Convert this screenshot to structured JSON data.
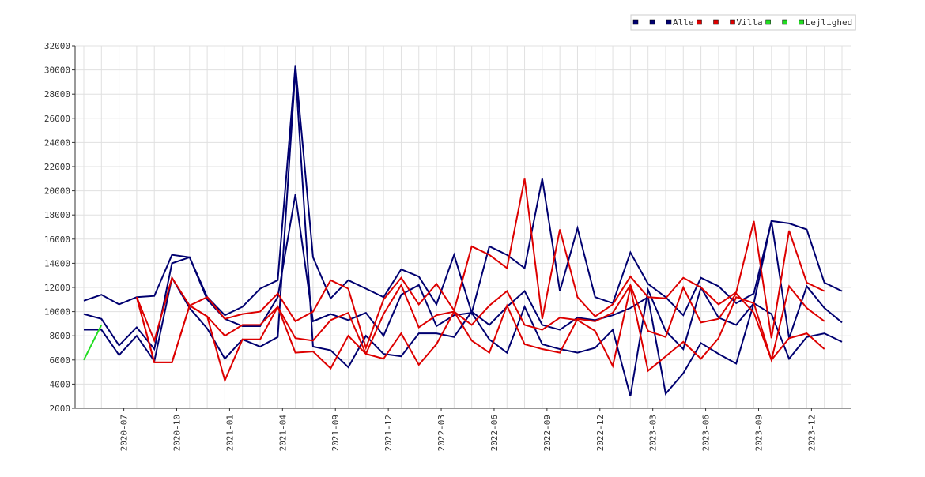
{
  "chart_data": {
    "type": "line",
    "categories": [
      null,
      null,
      "2020-07",
      null,
      null,
      "2020-10",
      null,
      null,
      "2021-01",
      null,
      null,
      "2021-04",
      null,
      null,
      "2021-09",
      null,
      null,
      "2021-12",
      null,
      null,
      "2022-03",
      null,
      null,
      "2022-06",
      null,
      null,
      "2022-09",
      null,
      null,
      "2022-12",
      null,
      null,
      "2023-03",
      null,
      null,
      "2023-06",
      null,
      null,
      "2023-09",
      null,
      null,
      "2023-12",
      null,
      null
    ],
    "series": [
      {
        "name": "Alle",
        "color": "#000070",
        "lines": [
          [
            10900,
            11400,
            10600,
            11200,
            11300,
            14700,
            14500,
            11200,
            9700,
            10400,
            11900,
            12600,
            30400,
            14500,
            11100,
            12600,
            11900,
            11200,
            13500,
            12900,
            10600,
            14700,
            9900,
            15400,
            14700,
            13600,
            21000,
            11700,
            16900,
            11200,
            10700,
            14900,
            12300,
            11200,
            9700,
            12800,
            12100,
            10700,
            11500,
            17500,
            17300,
            16800,
            12400,
            11700
          ],
          [
            9800,
            9400,
            7200,
            8700,
            6900,
            14000,
            14500,
            11000,
            9400,
            8800,
            8800,
            11200,
            19700,
            9200,
            9800,
            9300,
            9900,
            8000,
            11400,
            12200,
            8800,
            9700,
            9900,
            7700,
            6600,
            10400,
            7300,
            6900,
            6600,
            7000,
            8500,
            3000,
            11800,
            8400,
            6900,
            12000,
            9500,
            8900,
            10700,
            9800,
            6100,
            7900,
            8200,
            7500
          ],
          [
            8500,
            8500,
            6400,
            8000,
            5900,
            12800,
            10300,
            8600,
            6100,
            7700,
            7100,
            7900,
            30000,
            7100,
            6800,
            5400,
            8000,
            6500,
            6300,
            8200,
            8200,
            7900,
            10000,
            8900,
            10400,
            11700,
            8900,
            8500,
            9500,
            9300,
            9700,
            10300,
            11200,
            3200,
            4900,
            7400,
            6500,
            5700,
            10700,
            17500,
            7800,
            12100,
            10300,
            9100
          ]
        ]
      },
      {
        "name": "Villa",
        "color": "#dd0000",
        "lines": [
          [
            null,
            null,
            null,
            11200,
            7600,
            12800,
            10500,
            11200,
            9400,
            9800,
            10000,
            11500,
            9200,
            10000,
            12600,
            11900,
            7000,
            11000,
            12800,
            10600,
            12300,
            10100,
            15400,
            14700,
            13600,
            21000,
            9400,
            16800,
            11200,
            9600,
            10600,
            12900,
            11200,
            11100,
            12800,
            12000,
            10600,
            11600,
            17500,
            7800,
            16700,
            12400,
            11700,
            null
          ],
          [
            null,
            null,
            null,
            11200,
            5800,
            5800,
            10500,
            9600,
            8000,
            8900,
            8900,
            10400,
            7800,
            7600,
            9300,
            9900,
            6500,
            6100,
            8200,
            5600,
            7300,
            10000,
            7600,
            6600,
            10500,
            7300,
            6900,
            6600,
            9400,
            9200,
            9900,
            12200,
            8400,
            7900,
            12000,
            9100,
            9400,
            11500,
            9900,
            6000,
            7800,
            8200,
            6900,
            null
          ],
          [
            null,
            null,
            null,
            11200,
            5800,
            5800,
            10500,
            9600,
            4300,
            7700,
            7700,
            10400,
            6600,
            6700,
            5300,
            8000,
            6500,
            9800,
            12200,
            8700,
            9700,
            10000,
            8900,
            10500,
            11700,
            8900,
            8500,
            9500,
            9300,
            8400,
            5500,
            12000,
            5100,
            6300,
            7500,
            6100,
            7800,
            11200,
            10700,
            6000,
            12100,
            10300,
            9200,
            null
          ]
        ]
      },
      {
        "name": "Lejlighed",
        "color": "#22dd22",
        "lines": [
          [
            6000,
            8900,
            null,
            null,
            null,
            null,
            null,
            null,
            null,
            null,
            null,
            null,
            null,
            null,
            null,
            null,
            null,
            null,
            null,
            null,
            null,
            null,
            null,
            null,
            null,
            null,
            null,
            null,
            null,
            null,
            null,
            null,
            null,
            null,
            null,
            null,
            null,
            null,
            null,
            null,
            null,
            null,
            null,
            null
          ]
        ]
      }
    ],
    "ylim": [
      2000,
      32000
    ],
    "yticks": [
      2000,
      4000,
      6000,
      8000,
      10000,
      12000,
      14000,
      16000,
      18000,
      20000,
      22000,
      24000,
      26000,
      28000,
      30000,
      32000
    ],
    "grid": true,
    "legend": "top-right"
  }
}
